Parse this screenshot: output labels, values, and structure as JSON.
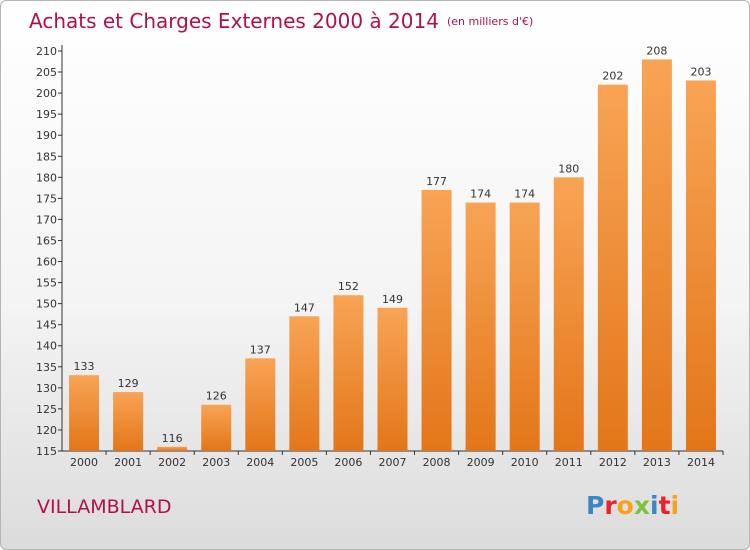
{
  "header": {
    "title": "Achats et Charges Externes 2000 à 2014",
    "subtitle": "(en milliers d'€)"
  },
  "footer": {
    "commune": "VILLAMBLARD",
    "logo": [
      "P",
      "r",
      "o",
      "x",
      "i",
      "t",
      "i"
    ]
  },
  "colors": {
    "title": "#b0104f",
    "bar_top": "#f8a455",
    "bar_bottom": "#e37619",
    "logo": [
      "#3d86c6",
      "#e8232a",
      "#f6a21b",
      "#7cc242",
      "#3d86c6",
      "#e8232a",
      "#f6a21b"
    ]
  },
  "chart_data": {
    "type": "bar",
    "categories": [
      "2000",
      "2001",
      "2002",
      "2003",
      "2004",
      "2005",
      "2006",
      "2007",
      "2008",
      "2009",
      "2010",
      "2011",
      "2012",
      "2013",
      "2014"
    ],
    "values": [
      133,
      129,
      116,
      126,
      137,
      147,
      152,
      149,
      177,
      174,
      174,
      180,
      202,
      208,
      203
    ],
    "ylim": [
      115,
      210
    ],
    "yticks": [
      115,
      120,
      125,
      130,
      135,
      140,
      145,
      150,
      155,
      160,
      165,
      170,
      175,
      180,
      185,
      190,
      195,
      200,
      205,
      210
    ],
    "grid": false
  }
}
